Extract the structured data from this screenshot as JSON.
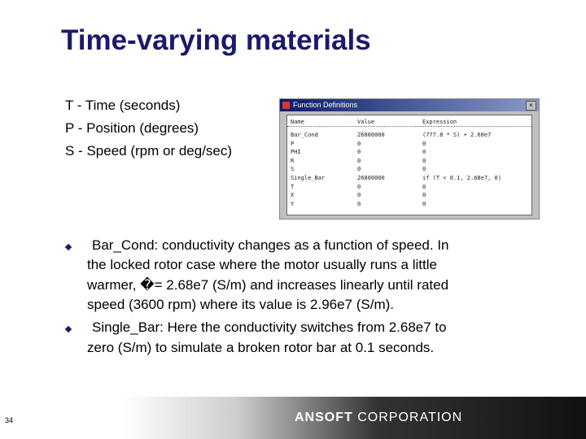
{
  "title": "Time-varying materials",
  "definitions": [
    "T - Time (seconds)",
    "P - Position (degrees)",
    "S - Speed (rpm or deg/sec)"
  ],
  "dialog": {
    "title": "Function Definitions",
    "columns": [
      "Name",
      "Value",
      "Expression"
    ],
    "rows": [
      [
        "Bar_Cond",
        "26800000",
        "(777.8 * S) + 2.68e7"
      ],
      [
        "P",
        "0",
        "0"
      ],
      [
        "PHI",
        "0",
        "0"
      ],
      [
        "R",
        "0",
        "0"
      ],
      [
        "S",
        "0",
        "0"
      ],
      [
        "Single_Bar",
        "26800000",
        "if (T < 0.1, 2.68e7, 0)"
      ],
      [
        "T",
        "0",
        "0"
      ],
      [
        "X",
        "0",
        "0"
      ],
      [
        "Y",
        "0",
        "0"
      ]
    ]
  },
  "bullets": [
    [
      "Bar_Cond: conductivity changes as a function of speed.  In",
      "the locked rotor case where the motor usually runs a little",
      "warmer, �= 2.68e7 (S/m) and increases linearly until rated",
      "speed (3600 rpm) where its value is 2.96e7 (S/m)."
    ],
    [
      "Single_Bar: Here the conductivity switches from 2.68e7 to",
      "zero (S/m) to simulate a broken rotor bar at 0.1 seconds."
    ]
  ],
  "footer": {
    "company": "ANSOFT",
    "suffix": "CORPORATION",
    "page": "34"
  }
}
